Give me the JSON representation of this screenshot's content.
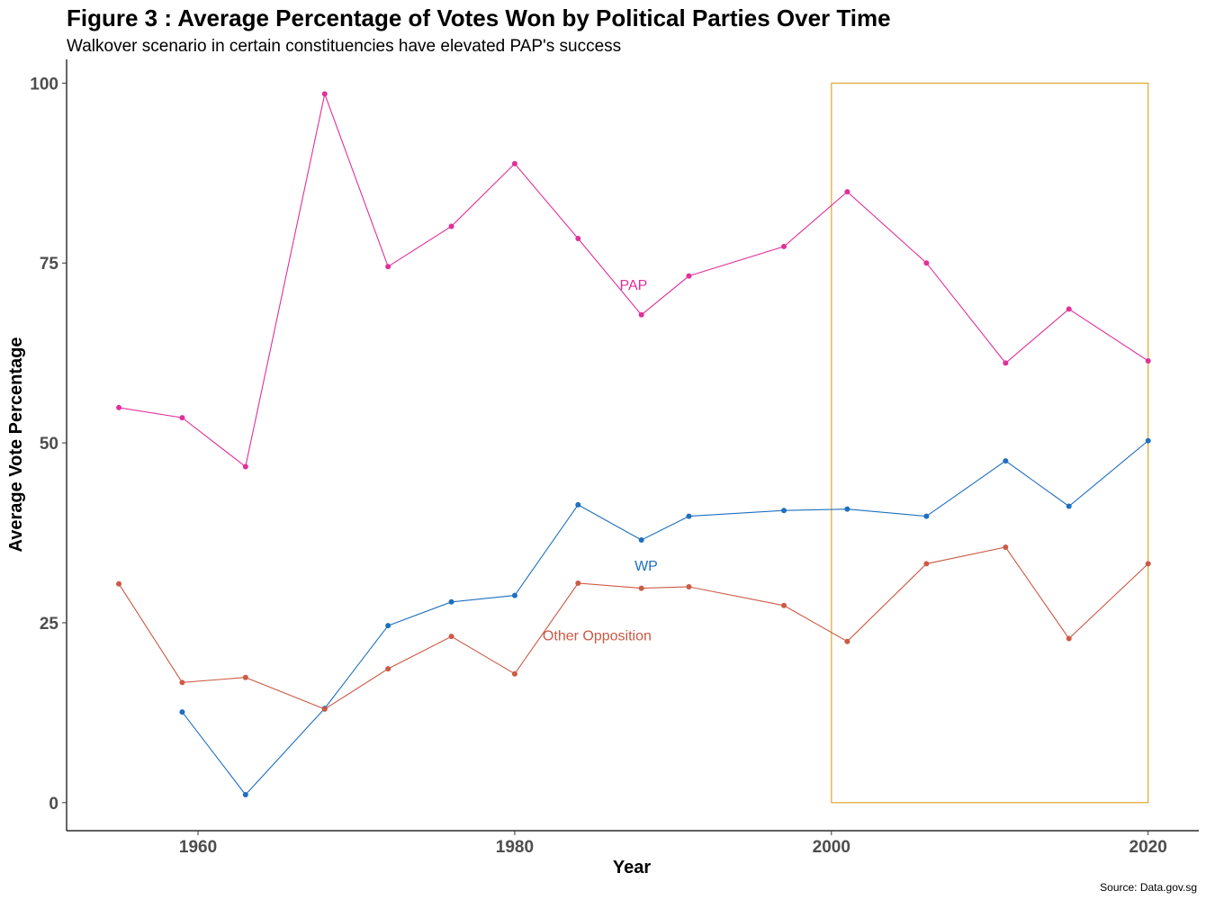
{
  "chart_data": {
    "type": "line",
    "title": "Figure 3 : Average Percentage of Votes Won by Political Parties Over Time",
    "subtitle": "Walkover scenario in certain constituencies have elevated PAP's success",
    "xlabel": "Year",
    "ylabel": "Average Vote Percentage",
    "caption": "Source: Data.gov.sg",
    "xlim": [
      1951.7,
      2023.2
    ],
    "ylim": [
      -3.9,
      103.3
    ],
    "x_ticks": [
      1960,
      1980,
      2000,
      2020
    ],
    "y_ticks": [
      0,
      25,
      50,
      75,
      100
    ],
    "grid": false,
    "legend": "none",
    "highlight_box": {
      "x_range": [
        2000,
        2020
      ],
      "y_range": [
        0,
        100
      ],
      "color": "#e0a82e"
    },
    "series": [
      {
        "name": "PAP",
        "color": "#e0309a",
        "x": [
          1955,
          1959,
          1963,
          1968,
          1972,
          1976,
          1980,
          1984,
          1988,
          1991,
          1997,
          2001,
          2006,
          2011,
          2015,
          2020
        ],
        "y": [
          54.9,
          53.5,
          46.7,
          98.5,
          74.5,
          80.1,
          88.8,
          78.4,
          67.8,
          73.2,
          77.3,
          84.9,
          75.0,
          61.1,
          68.6,
          61.4
        ],
        "label_at": [
          1987.5,
          72.0
        ]
      },
      {
        "name": "WP",
        "color": "#1f6fbf",
        "x": [
          1959,
          1963,
          1968,
          1972,
          1976,
          1980,
          1984,
          1988,
          1991,
          1997,
          2001,
          2006,
          2011,
          2015,
          2020
        ],
        "y": [
          12.6,
          1.1,
          13.1,
          24.6,
          27.9,
          28.8,
          41.4,
          36.5,
          39.8,
          40.6,
          40.8,
          39.8,
          47.5,
          41.2,
          50.3
        ],
        "label_at": [
          1988.3,
          33.0
        ]
      },
      {
        "name": "Other Opposition",
        "color": "#cc5a45",
        "x": [
          1955,
          1959,
          1963,
          1968,
          1972,
          1976,
          1980,
          1984,
          1988,
          1991,
          1997,
          2001,
          2006,
          2011,
          2015,
          2020
        ],
        "y": [
          30.4,
          16.7,
          17.4,
          13.0,
          18.6,
          23.1,
          17.9,
          30.5,
          29.8,
          30.0,
          27.4,
          22.4,
          33.2,
          35.5,
          22.8,
          33.2
        ],
        "label_at": [
          1985.2,
          23.3
        ]
      }
    ]
  }
}
